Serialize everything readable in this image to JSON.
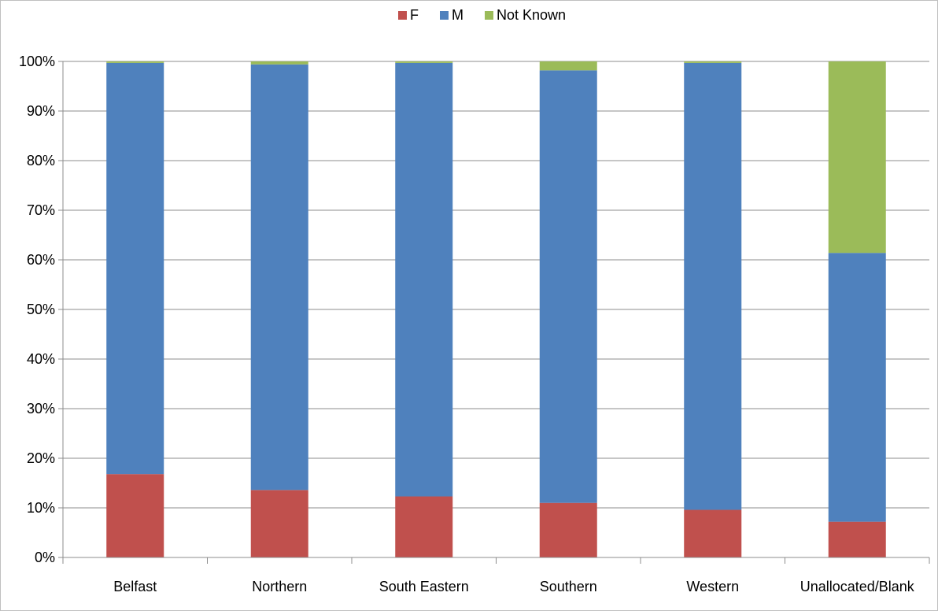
{
  "chart_data": {
    "type": "bar",
    "stacked": true,
    "normalized": true,
    "title": "",
    "xlabel": "",
    "ylabel": "",
    "categories": [
      "Belfast",
      "Northern",
      "South Eastern",
      "Southern",
      "Western",
      "Unallocated/Blank"
    ],
    "series": [
      {
        "name": "F",
        "color": "#c0504d",
        "values": [
          16.8,
          13.6,
          12.3,
          11.0,
          9.6,
          7.2
        ]
      },
      {
        "name": "M",
        "color": "#4f81bd",
        "values": [
          82.9,
          85.8,
          87.4,
          87.2,
          90.1,
          54.2
        ]
      },
      {
        "name": "Not Known",
        "color": "#9bbb59",
        "values": [
          0.3,
          0.6,
          0.3,
          1.8,
          0.3,
          38.6
        ]
      }
    ],
    "ylim": [
      0,
      100
    ],
    "yticks": [
      "0%",
      "10%",
      "20%",
      "30%",
      "40%",
      "50%",
      "60%",
      "70%",
      "80%",
      "90%",
      "100%"
    ],
    "grid": true,
    "legend_position": "top"
  }
}
